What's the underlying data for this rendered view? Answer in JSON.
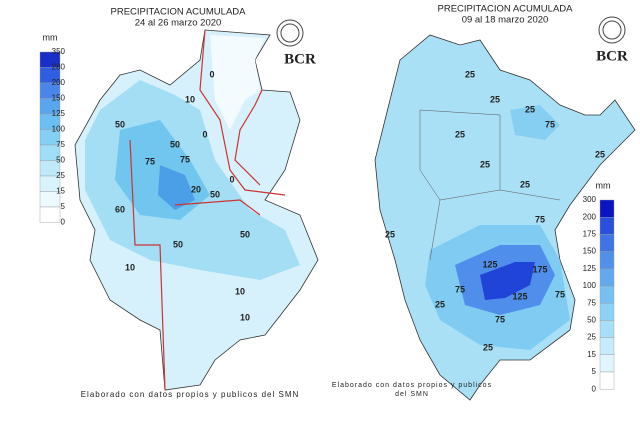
{
  "maps": [
    {
      "title": "PRECIPITACION ACUMULADA",
      "subtitle": "24 al 26 marzo 2020",
      "logo": "BCR",
      "legend": {
        "unit": "mm",
        "values": [
          350,
          280,
          200,
          150,
          125,
          100,
          75,
          50,
          25,
          15,
          5,
          0
        ],
        "colors": [
          "#1a2fc8",
          "#2f5fe0",
          "#4a86ea",
          "#5aa6ee",
          "#6cbff2",
          "#83d0f4",
          "#a0ddf6",
          "#bfe9f9",
          "#d9f3fc",
          "#ecf9fe",
          "#ffffff"
        ]
      },
      "contour_labels": [
        "0",
        "10",
        "0",
        "50",
        "75",
        "50",
        "75",
        "20",
        "50",
        "50",
        "0",
        "50",
        "10",
        "10",
        "10",
        "60"
      ],
      "footer": "Elaborado con datos propios y publicos del SMN"
    },
    {
      "title": "PRECIPITACION ACUMULADA",
      "subtitle": "09 al 18 marzo 2020",
      "logo": "BCR",
      "legend": {
        "unit": "mm",
        "values": [
          300,
          200,
          175,
          150,
          125,
          100,
          75,
          50,
          25,
          15,
          5,
          0
        ],
        "colors": [
          "#0a14c0",
          "#2a4fdc",
          "#3f73e6",
          "#5290ea",
          "#63a9ee",
          "#76c0f2",
          "#8dd1f5",
          "#a8def7",
          "#c6ebfa",
          "#e0f5fd",
          "#ffffff"
        ]
      },
      "contour_labels": [
        "25",
        "25",
        "25",
        "75",
        "25",
        "25",
        "25",
        "75",
        "25",
        "25",
        "125",
        "175",
        "125",
        "75",
        "75",
        "25",
        "75",
        "25"
      ],
      "footer": [
        "Elaborado con datos propios y publicos",
        "del SMN"
      ]
    }
  ]
}
